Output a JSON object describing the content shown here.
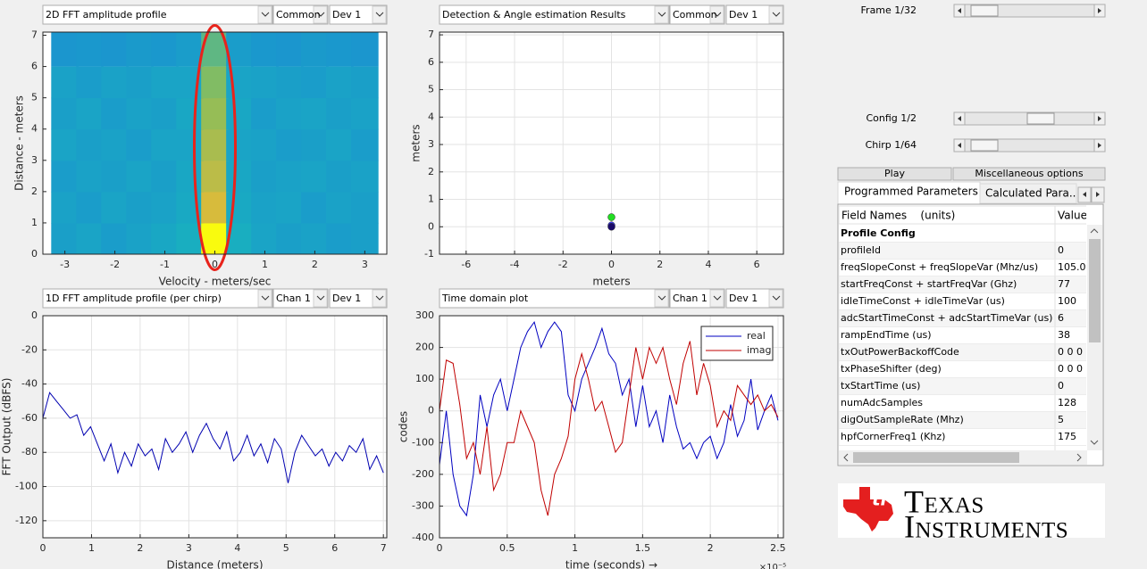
{
  "panels": [
    {
      "selector": "2D FFT amplitude profile",
      "options": [
        "Common",
        "Dev 1"
      ]
    },
    {
      "selector": "Detection & Angle estimation Results",
      "options": [
        "Common",
        "Dev 1"
      ]
    },
    {
      "selector": "1D FFT amplitude profile (per chirp)",
      "options": [
        "Chan 1",
        "Dev 1"
      ]
    },
    {
      "selector": "Time domain plot",
      "options": [
        "Chan 1",
        "Dev 1"
      ]
    }
  ],
  "chart_data": [
    {
      "type": "heatmap",
      "xlabel": "Velocity - meters/sec",
      "ylabel": "Distance - meters",
      "x": [
        -3,
        -2.5,
        -2,
        -1.5,
        -1,
        -0.5,
        0,
        0.5,
        1,
        1.5,
        2,
        2.5,
        3
      ],
      "y": [
        0.5,
        1.5,
        2.5,
        3.5,
        4.5,
        5.5,
        6.5
      ],
      "z": [
        [
          34,
          36,
          33,
          35,
          37,
          40,
          100,
          40,
          36,
          34,
          35,
          33,
          34
        ],
        [
          35,
          33,
          36,
          34,
          35,
          38,
          76,
          38,
          35,
          36,
          33,
          35,
          34
        ],
        [
          33,
          35,
          34,
          36,
          34,
          37,
          70,
          37,
          34,
          35,
          36,
          34,
          35
        ],
        [
          36,
          34,
          35,
          33,
          36,
          36,
          66,
          36,
          35,
          33,
          34,
          36,
          33
        ],
        [
          34,
          36,
          33,
          35,
          34,
          37,
          62,
          37,
          33,
          35,
          36,
          34,
          35
        ],
        [
          35,
          33,
          35,
          34,
          36,
          36,
          58,
          36,
          35,
          34,
          33,
          35,
          34
        ],
        [
          30,
          31,
          30,
          32,
          31,
          33,
          52,
          33,
          31,
          30,
          32,
          31,
          30
        ]
      ],
      "clim": [
        0,
        100
      ],
      "colormap": [
        "#352a87",
        "#1c7ddc",
        "#19aec0",
        "#8dbd5a",
        "#e9ba35",
        "#f9fb0e"
      ],
      "xlim": [
        -3.44,
        3.44
      ],
      "ylim": [
        0,
        7.1
      ],
      "xticks": [
        -3,
        -2,
        -1,
        0,
        1,
        2,
        3
      ],
      "yticks": [
        0,
        1,
        2,
        3,
        4,
        5,
        6,
        7
      ],
      "grid": false
    },
    {
      "type": "scatter",
      "xlabel": "meters",
      "ylabel": "meters",
      "series": [
        {
          "color": "#22dd22",
          "x": [
            0
          ],
          "values": [
            0.35
          ]
        },
        {
          "color": "#3a3aff",
          "x": [
            0
          ],
          "values": [
            0.05
          ]
        },
        {
          "color": "#1a0a6a",
          "x": [
            0
          ],
          "values": [
            0
          ]
        }
      ],
      "xlim": [
        -7.1,
        7.1
      ],
      "ylim": [
        -1,
        7.1
      ],
      "xticks": [
        -6,
        -4,
        -2,
        0,
        2,
        4,
        6
      ],
      "yticks": [
        -1,
        0,
        1,
        2,
        3,
        4,
        5,
        6,
        7
      ],
      "grid": true
    },
    {
      "type": "line",
      "xlabel": "Distance (meters)",
      "ylabel": "FFT Output (dBFS)",
      "color": "#0000b0",
      "x": [
        0,
        0.14,
        0.28,
        0.42,
        0.56,
        0.7,
        0.84,
        0.98,
        1.12,
        1.26,
        1.4,
        1.54,
        1.68,
        1.82,
        1.96,
        2.1,
        2.24,
        2.38,
        2.52,
        2.66,
        2.8,
        2.94,
        3.08,
        3.22,
        3.36,
        3.5,
        3.64,
        3.78,
        3.92,
        4.06,
        4.2,
        4.34,
        4.48,
        4.62,
        4.76,
        4.9,
        5.04,
        5.18,
        5.32,
        5.46,
        5.6,
        5.74,
        5.88,
        6.02,
        6.16,
        6.3,
        6.44,
        6.58,
        6.72,
        6.86,
        7
      ],
      "values": [
        -60,
        -45,
        -50,
        -55,
        -60,
        -58,
        -70,
        -65,
        -75,
        -85,
        -75,
        -92,
        -80,
        -88,
        -75,
        -82,
        -78,
        -90,
        -72,
        -80,
        -75,
        -68,
        -80,
        -70,
        -63,
        -72,
        -78,
        -68,
        -85,
        -80,
        -70,
        -82,
        -75,
        -86,
        -72,
        -78,
        -98,
        -80,
        -70,
        -76,
        -82,
        -78,
        -88,
        -80,
        -85,
        -76,
        -80,
        -72,
        -90,
        -82,
        -92
      ],
      "xlim": [
        0,
        7.07
      ],
      "ylim": [
        -130,
        0
      ],
      "xticks": [
        0,
        1,
        2,
        3,
        4,
        5,
        6,
        7
      ],
      "yticks": [
        0,
        -20,
        -40,
        -60,
        -80,
        -100,
        -120
      ],
      "grid": true
    },
    {
      "type": "line",
      "xlabel": "time  (seconds) →",
      "x_multiplier_label": "×10⁻⁵",
      "ylabel": "codes",
      "x": [
        0,
        0.05,
        0.1,
        0.15,
        0.2,
        0.25,
        0.3,
        0.35,
        0.4,
        0.45,
        0.5,
        0.55,
        0.6,
        0.65,
        0.7,
        0.75,
        0.8,
        0.85,
        0.9,
        0.95,
        1,
        1.05,
        1.1,
        1.15,
        1.2,
        1.25,
        1.3,
        1.35,
        1.4,
        1.45,
        1.5,
        1.55,
        1.6,
        1.65,
        1.7,
        1.75,
        1.8,
        1.85,
        1.9,
        1.95,
        2,
        2.05,
        2.1,
        2.15,
        2.2,
        2.25,
        2.3,
        2.35,
        2.4,
        2.45,
        2.5
      ],
      "series": [
        {
          "name": "real",
          "color": "#0000c0",
          "values": [
            -170,
            0,
            -200,
            -300,
            -330,
            -200,
            50,
            -50,
            50,
            100,
            0,
            100,
            200,
            250,
            280,
            200,
            250,
            280,
            250,
            50,
            0,
            100,
            150,
            200,
            260,
            180,
            150,
            50,
            100,
            -50,
            80,
            -50,
            0,
            -100,
            50,
            -50,
            -120,
            -100,
            -150,
            -100,
            -80,
            -150,
            -100,
            20,
            -80,
            -30,
            100,
            -60,
            0,
            50,
            -30
          ]
        },
        {
          "name": "imag",
          "color": "#c00000",
          "values": [
            0,
            160,
            150,
            20,
            -150,
            -100,
            -200,
            -50,
            -250,
            -200,
            -100,
            -100,
            0,
            -50,
            -100,
            -250,
            -330,
            -200,
            -150,
            -80,
            100,
            180,
            100,
            0,
            30,
            -50,
            -130,
            -100,
            50,
            200,
            100,
            200,
            150,
            200,
            100,
            20,
            150,
            220,
            50,
            150,
            80,
            -50,
            0,
            -30,
            80,
            50,
            20,
            50,
            0,
            20,
            -20
          ]
        }
      ],
      "xlim": [
        0,
        2.54
      ],
      "ylim": [
        -400,
        300
      ],
      "xticks": [
        0,
        0.5,
        1,
        1.5,
        2,
        2.5
      ],
      "yticks": [
        -400,
        -300,
        -200,
        -100,
        0,
        100,
        200,
        300
      ],
      "grid": true,
      "legend": "top-right"
    }
  ],
  "controls": {
    "sliders": [
      "Frame 1/32",
      "Config 1/2",
      "Chirp 1/64"
    ],
    "buttons": [
      "Play",
      "Miscellaneous options"
    ],
    "tabs": [
      "Programmed Parameters",
      "Calculated Para..."
    ]
  },
  "table": {
    "header": [
      "Field Names    (units)",
      "Value"
    ],
    "section": "Profile Config",
    "rows": [
      [
        "profileId",
        "0"
      ],
      [
        "freqSlopeConst + freqSlopeVar (Mhz/us)",
        "105.00"
      ],
      [
        "startFreqConst + startFreqVar (Ghz)",
        "77"
      ],
      [
        "idleTimeConst + idleTimeVar (us)",
        "100"
      ],
      [
        "adcStartTimeConst + adcStartTimeVar (us)",
        "6"
      ],
      [
        "rampEndTime (us)",
        "38"
      ],
      [
        "txOutPowerBackoffCode",
        "0 0 0"
      ],
      [
        "txPhaseShifter (deg)",
        "0 0 0"
      ],
      [
        "txStartTime (us)",
        "0"
      ],
      [
        "numAdcSamples",
        "128"
      ],
      [
        "digOutSampleRate (Mhz)",
        "5"
      ],
      [
        "hpfCornerFreq1 (Khz)",
        "175"
      ]
    ]
  },
  "logo": {
    "line1": "Texas",
    "line2": "Instruments"
  }
}
